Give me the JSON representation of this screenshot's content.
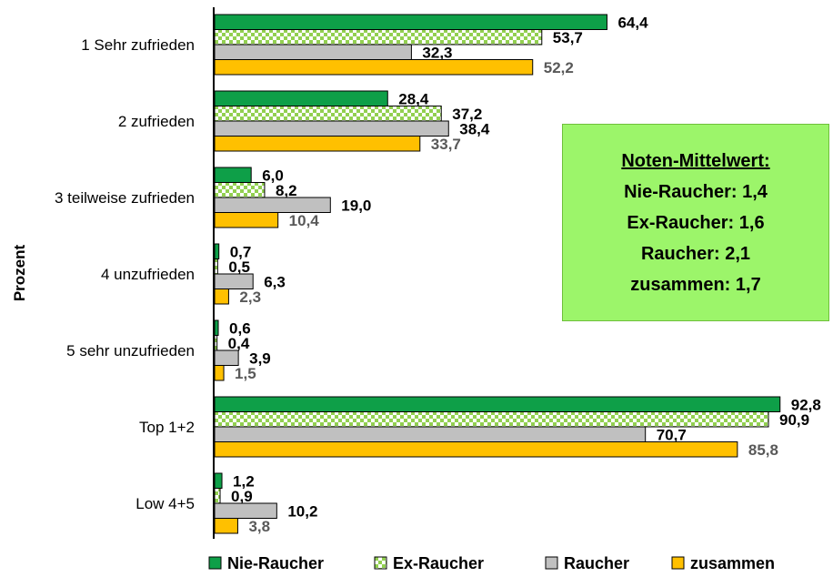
{
  "chart_data": {
    "type": "bar",
    "orientation": "horizontal",
    "ylabel": "Prozent",
    "categories": [
      "1 Sehr zufrieden",
      "2 zufrieden",
      "3 teilweise zufrieden",
      "4 unzufrieden",
      "5 sehr unzufrieden",
      "Top 1+2",
      "Low 4+5"
    ],
    "series": [
      {
        "name": "Nie-Raucher",
        "color": "#0e9f48",
        "values": [
          64.4,
          28.4,
          6.0,
          0.7,
          0.6,
          92.8,
          1.2
        ],
        "labels": [
          "64,4",
          "28,4",
          "6,0",
          "0,7",
          "0,6",
          "92,8",
          "1,2"
        ]
      },
      {
        "name": "Ex-Raucher",
        "color": "#92d050",
        "pattern": "checker",
        "values": [
          53.7,
          37.2,
          8.2,
          0.5,
          0.4,
          90.9,
          0.9
        ],
        "labels": [
          "53,7",
          "37,2",
          "8,2",
          "0,5",
          "0,4",
          "90,9",
          "0,9"
        ]
      },
      {
        "name": "Raucher",
        "color": "#c0c0c0",
        "values": [
          32.3,
          38.4,
          19.0,
          6.3,
          3.9,
          70.7,
          10.2
        ],
        "labels": [
          "32,3",
          "38,4",
          "19,0",
          "6,3",
          "3,9",
          "70,7",
          "10,2"
        ]
      },
      {
        "name": "zusammen",
        "color": "#ffc000",
        "label_color": "#595959",
        "values": [
          52.2,
          33.7,
          10.4,
          2.3,
          1.5,
          85.8,
          3.8
        ],
        "labels": [
          "52,2",
          "33,7",
          "10,4",
          "2,3",
          "1,5",
          "85,8",
          "3,8"
        ]
      }
    ],
    "legend_position": "bottom",
    "grid": false
  },
  "info_box": {
    "title": "Noten-Mittelwert:",
    "lines": [
      "Nie-Raucher: 1,4",
      "Ex-Raucher: 1,6",
      "Raucher: 2,1",
      "zusammen: 1,7"
    ],
    "background": "#9cf56a"
  }
}
